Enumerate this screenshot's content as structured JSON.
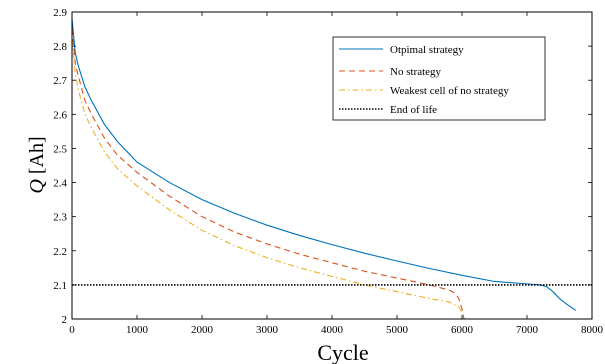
{
  "chart_data": {
    "type": "line",
    "xlabel": "Cycle",
    "ylabel_symbol": "Q",
    "ylabel_unit": "[Ah]",
    "xlim": [
      0,
      8000
    ],
    "ylim": [
      2,
      2.9
    ],
    "x_ticks": [
      0,
      1000,
      2000,
      3000,
      4000,
      5000,
      6000,
      7000,
      8000
    ],
    "y_ticks": [
      2,
      2.1,
      2.2,
      2.3,
      2.4,
      2.5,
      2.6,
      2.7,
      2.8,
      2.9
    ],
    "grid": false,
    "legend_position": "top-right",
    "series": [
      {
        "name": "Otpimal strategy",
        "color": "#0072bd",
        "style": "solid",
        "x": [
          0,
          50,
          100,
          200,
          300,
          500,
          700,
          1000,
          1500,
          2000,
          2500,
          3000,
          3500,
          4000,
          4500,
          5000,
          5500,
          6000,
          6500,
          7000,
          7200,
          7300,
          7400,
          7500,
          7600,
          7750
        ],
        "y": [
          2.88,
          2.78,
          2.74,
          2.68,
          2.64,
          2.57,
          2.52,
          2.46,
          2.4,
          2.35,
          2.31,
          2.275,
          2.245,
          2.218,
          2.193,
          2.17,
          2.148,
          2.128,
          2.11,
          2.103,
          2.1,
          2.095,
          2.08,
          2.06,
          2.045,
          2.025
        ]
      },
      {
        "name": "No strategy",
        "color": "#d95319",
        "style": "dashed",
        "x": [
          0,
          50,
          100,
          200,
          300,
          500,
          700,
          1000,
          1500,
          2000,
          2500,
          3000,
          3500,
          4000,
          4500,
          5000,
          5500,
          5700,
          5800,
          5900,
          5950,
          6000,
          6030
        ],
        "y": [
          2.85,
          2.75,
          2.71,
          2.64,
          2.6,
          2.53,
          2.48,
          2.43,
          2.36,
          2.3,
          2.255,
          2.22,
          2.19,
          2.165,
          2.14,
          2.12,
          2.1,
          2.09,
          2.085,
          2.075,
          2.06,
          2.03,
          2.0
        ]
      },
      {
        "name": "Weakest cell of no strategy",
        "color": "#edb120",
        "style": "dashdot",
        "x": [
          0,
          50,
          100,
          200,
          300,
          500,
          700,
          1000,
          1500,
          2000,
          2500,
          3000,
          3500,
          4000,
          4500,
          5000,
          5500,
          5800,
          5900,
          5950,
          6000,
          6050
        ],
        "y": [
          2.82,
          2.72,
          2.67,
          2.6,
          2.56,
          2.49,
          2.44,
          2.39,
          2.32,
          2.26,
          2.215,
          2.18,
          2.15,
          2.125,
          2.1,
          2.08,
          2.06,
          2.05,
          2.04,
          2.035,
          2.02,
          2.0
        ]
      },
      {
        "name": "End of life",
        "color": "#000000",
        "style": "dotted",
        "x": [
          0,
          8000
        ],
        "y": [
          2.1,
          2.1
        ]
      }
    ]
  }
}
